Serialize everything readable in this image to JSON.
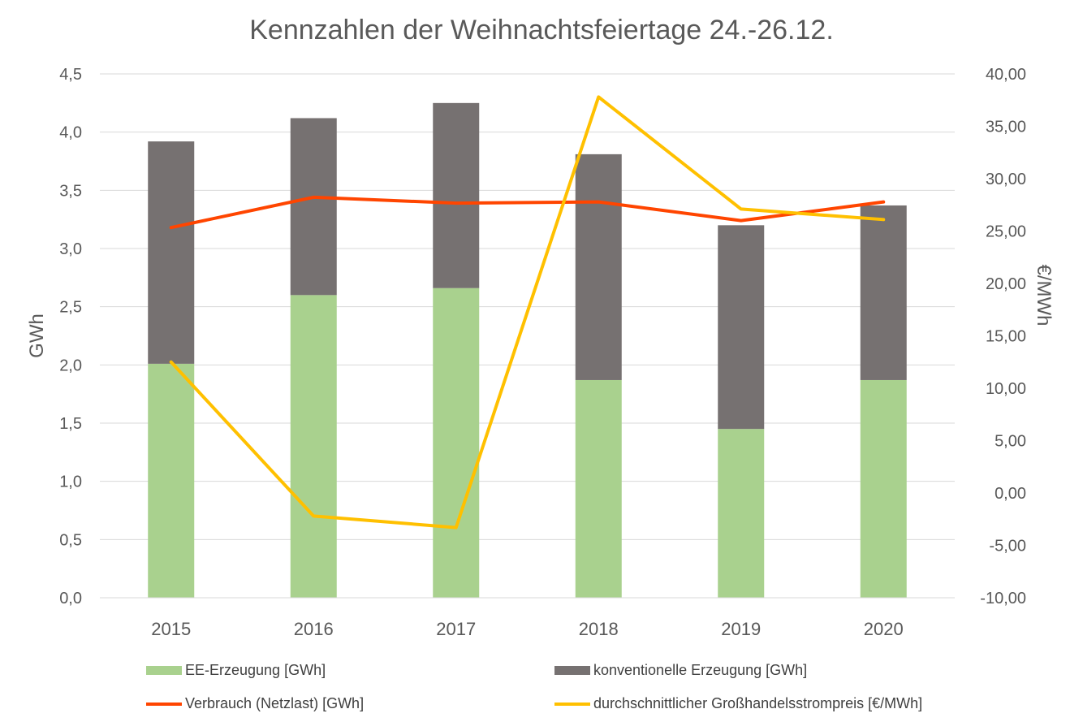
{
  "chart_data": {
    "type": "bar",
    "title": "Kennzahlen der Weihnachtsfeiertage 24.-26.12.",
    "categories": [
      "2015",
      "2016",
      "2017",
      "2018",
      "2019",
      "2020"
    ],
    "ylabel": "GWh",
    "y2label": "€/MWh",
    "ylim": [
      0,
      4.5
    ],
    "y2lim": [
      -10,
      40
    ],
    "yticks": [
      "0,0",
      "0,5",
      "1,0",
      "1,5",
      "2,0",
      "2,5",
      "3,0",
      "3,5",
      "4,0",
      "4,5"
    ],
    "y2ticks": [
      "-10,00",
      "-5,00",
      "0,00",
      "5,00",
      "10,00",
      "15,00",
      "20,00",
      "25,00",
      "30,00",
      "35,00",
      "40,00"
    ],
    "grid": true,
    "legend_position": "bottom",
    "series": [
      {
        "name": "EE-Erzeugung [GWh]",
        "type": "bar",
        "stack": "erzeugung",
        "axis": "left",
        "color": "#a9d18e",
        "values": [
          2.01,
          2.6,
          2.66,
          1.87,
          1.45,
          1.87
        ]
      },
      {
        "name": "konventionelle Erzeugung [GWh]",
        "type": "bar",
        "stack": "erzeugung",
        "axis": "left",
        "color": "#767171",
        "values": [
          1.91,
          1.52,
          1.59,
          1.94,
          1.75,
          1.5
        ]
      },
      {
        "name": "Verbrauch (Netzlast) [GWh]",
        "type": "line",
        "axis": "left",
        "color": "#ff4500",
        "values": [
          3.18,
          3.44,
          3.39,
          3.4,
          3.24,
          3.4
        ]
      },
      {
        "name": "durchschnittlicher Großhandelsstrompreis [€/MWh]",
        "type": "line",
        "axis": "right",
        "color": "#ffc000",
        "values": [
          12.5,
          -2.2,
          -3.3,
          37.8,
          27.1,
          26.1
        ]
      }
    ]
  }
}
